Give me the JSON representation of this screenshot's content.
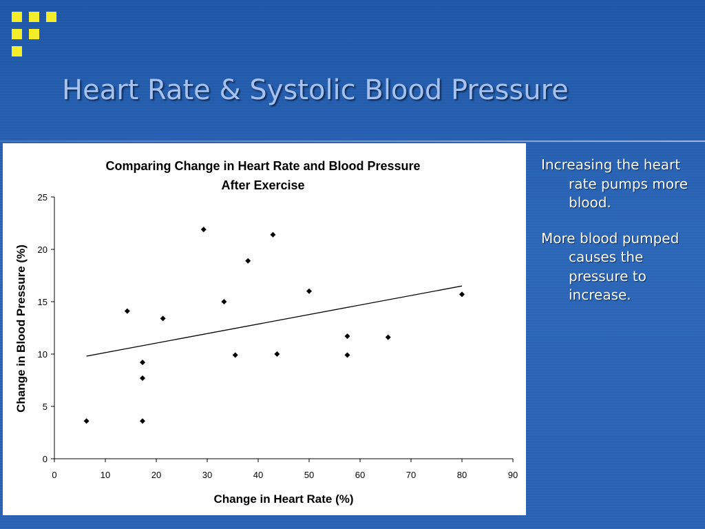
{
  "slide": {
    "title": "Heart Rate & Systolic Blood Pressure",
    "bullets": [
      "Increasing the heart rate pumps more blood.",
      "More blood pumped causes the pressure to increase."
    ],
    "colors": {
      "background": "#2a62b2",
      "title": "#a7c2ef",
      "logo": "#f4ee2a"
    },
    "icons": [
      "yellow-square-grid-logo-icon"
    ]
  },
  "chart_data": {
    "type": "scatter",
    "title_lines": [
      "Comparing Change in Heart Rate and Blood Pressure",
      "After Exercise"
    ],
    "xlabel": "Change in Heart Rate (%)",
    "ylabel": "Change in Blood Pressure (%)",
    "xlim": [
      0,
      90
    ],
    "ylim": [
      0,
      25
    ],
    "xticks": [
      0,
      10,
      20,
      30,
      40,
      50,
      60,
      70,
      80,
      90
    ],
    "yticks": [
      0,
      5,
      10,
      15,
      20,
      25
    ],
    "grid": false,
    "legend": "none",
    "marker": "diamond",
    "points": [
      {
        "x": 6.3,
        "y": 3.6
      },
      {
        "x": 14.3,
        "y": 14.1
      },
      {
        "x": 17.3,
        "y": 9.2
      },
      {
        "x": 17.3,
        "y": 7.7
      },
      {
        "x": 17.3,
        "y": 3.6
      },
      {
        "x": 21.3,
        "y": 13.4
      },
      {
        "x": 29.3,
        "y": 21.9
      },
      {
        "x": 33.3,
        "y": 15.0
      },
      {
        "x": 35.5,
        "y": 9.9
      },
      {
        "x": 38.0,
        "y": 18.9
      },
      {
        "x": 42.9,
        "y": 21.4
      },
      {
        "x": 43.7,
        "y": 10.0
      },
      {
        "x": 50.0,
        "y": 16.0
      },
      {
        "x": 57.5,
        "y": 11.7
      },
      {
        "x": 57.5,
        "y": 9.9
      },
      {
        "x": 65.5,
        "y": 11.6
      },
      {
        "x": 80.0,
        "y": 15.7
      }
    ],
    "trendline": {
      "x": [
        6.3,
        80.0
      ],
      "y": [
        9.8,
        16.5
      ]
    }
  }
}
